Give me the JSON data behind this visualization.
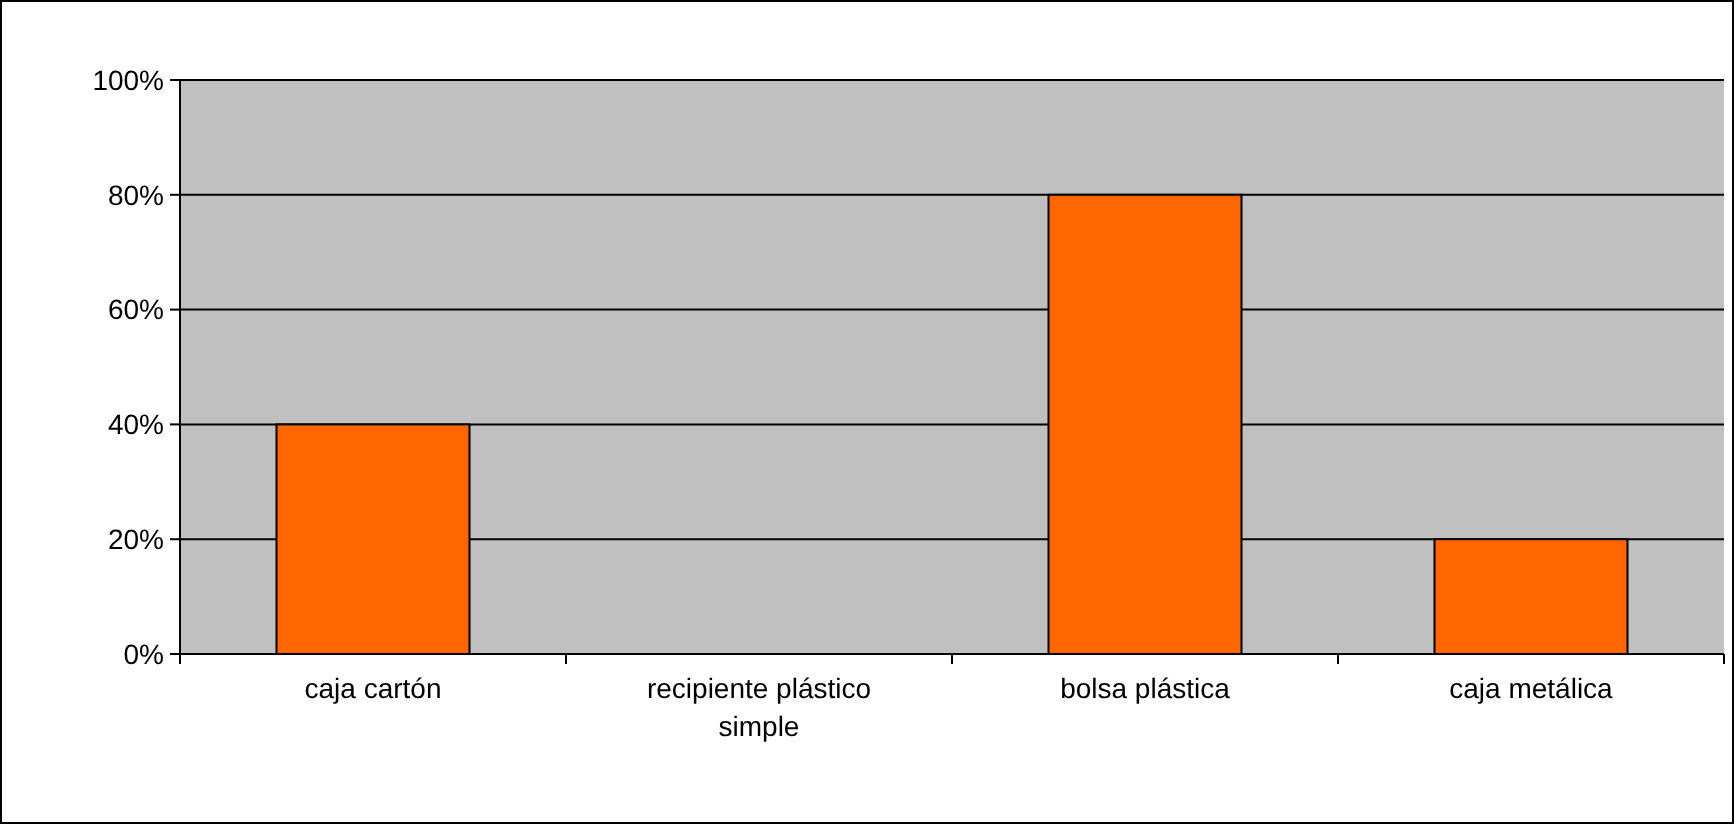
{
  "chart_data": {
    "type": "bar",
    "categories": [
      "caja cartón",
      "recipiente plástico simple",
      "bolsa plástica",
      "caja metálica"
    ],
    "values": [
      40,
      0,
      80,
      20
    ],
    "color": "#ff6600",
    "ylim": [
      0,
      100
    ],
    "yticks": [
      {
        "value": 0,
        "label": "0%"
      },
      {
        "value": 20,
        "label": "20%"
      },
      {
        "value": 40,
        "label": "40%"
      },
      {
        "value": 60,
        "label": "60%"
      },
      {
        "value": 80,
        "label": "80%"
      },
      {
        "value": 100,
        "label": "100%"
      }
    ],
    "grid": "y"
  }
}
